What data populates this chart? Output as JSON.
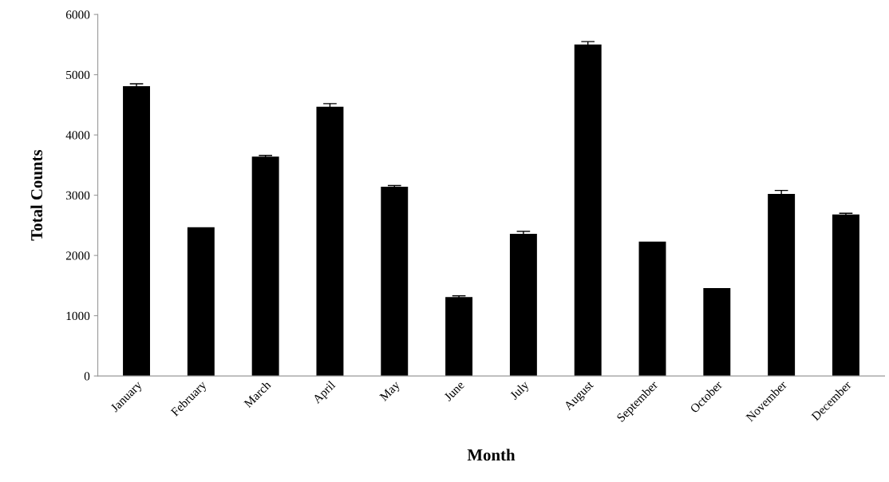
{
  "chart_data": {
    "type": "bar",
    "xlabel": "Month",
    "ylabel": "Total Counts",
    "categories": [
      "January",
      "February",
      "March",
      "April",
      "May",
      "June",
      "July",
      "August",
      "September",
      "October",
      "November",
      "December"
    ],
    "values": [
      4810,
      2470,
      3640,
      4470,
      3140,
      1310,
      2360,
      5500,
      2230,
      1460,
      3020,
      2680
    ],
    "errors": [
      40,
      null,
      20,
      50,
      20,
      20,
      40,
      50,
      null,
      null,
      60,
      20
    ],
    "color": "#000000",
    "ylim": [
      0,
      6000
    ],
    "yticks": [
      0,
      1000,
      2000,
      3000,
      4000,
      5000,
      6000
    ],
    "grid": false,
    "legend": false
  }
}
